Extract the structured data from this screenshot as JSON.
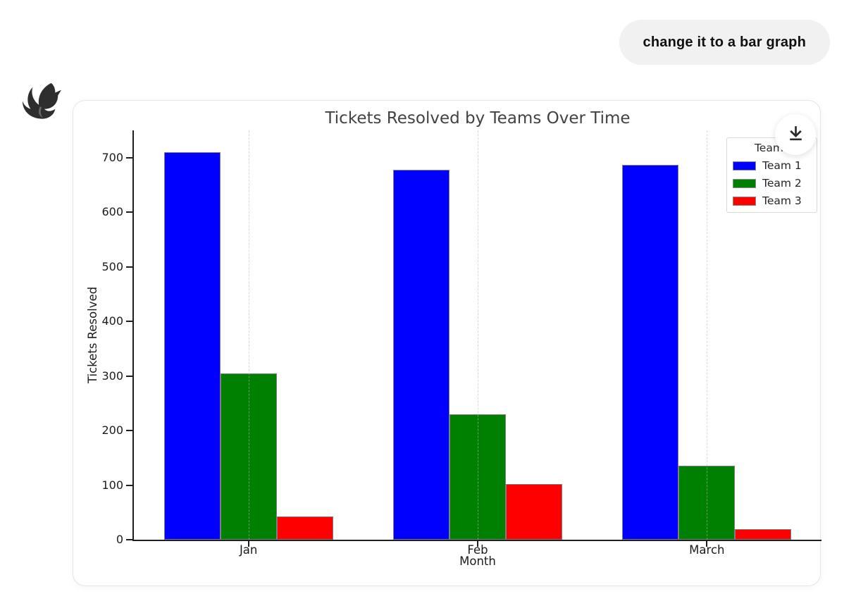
{
  "chat": {
    "user_message": "change it to a bar graph"
  },
  "icons": {
    "avatar": "bird-logo",
    "download": "arrow-down-to-line"
  },
  "colors": {
    "bubble_background": "#f1f1f2",
    "card_border": "#e5e5e5",
    "axis": "#1f1f1f"
  },
  "chart_data": {
    "type": "bar",
    "title": "Tickets Resolved by Teams Over Time",
    "xlabel": "Month",
    "ylabel": "Tickets Resolved",
    "categories": [
      "Jan",
      "Feb",
      "March"
    ],
    "series": [
      {
        "name": "Team 1",
        "color": "#0000ff",
        "values": [
          710,
          678,
          687
        ]
      },
      {
        "name": "Team 2",
        "color": "#008000",
        "values": [
          305,
          230,
          136
        ]
      },
      {
        "name": "Team 3",
        "color": "#ff0000",
        "values": [
          42,
          102,
          20
        ]
      }
    ],
    "legend_title": "Teams",
    "legend_position": "upper right",
    "ylim": [
      0,
      750
    ],
    "yticks": [
      0,
      100,
      200,
      300,
      400,
      500,
      600,
      700
    ],
    "grid": "vertical-dashed-at-category-centers",
    "bar_edge_color": "#7f7f7f"
  }
}
